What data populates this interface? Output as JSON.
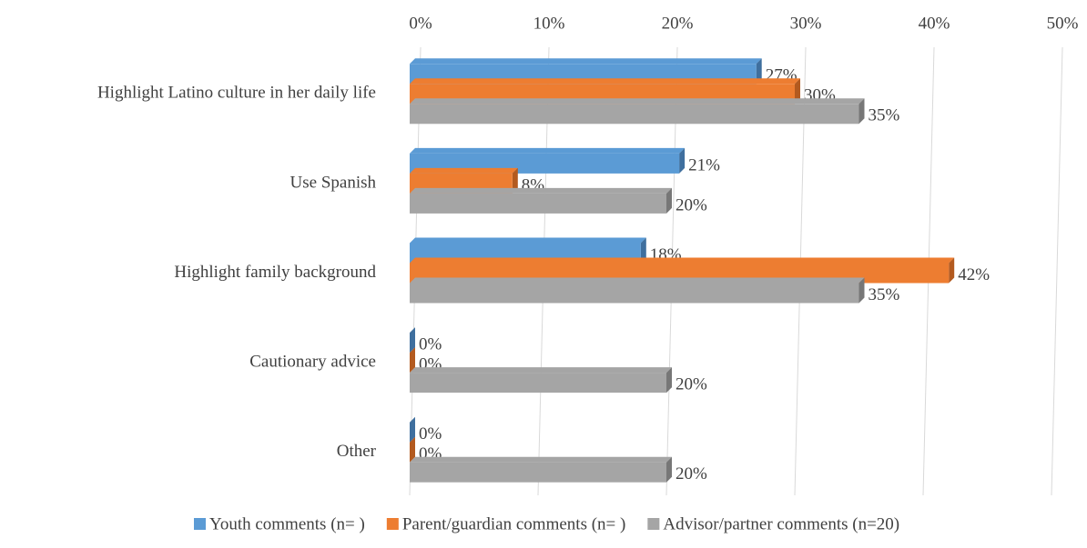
{
  "chart_data": {
    "type": "bar3d_horizontal",
    "categories": [
      "Highlight Latino culture in her daily life",
      "Use Spanish",
      "Highlight family  background",
      "Cautionary advice",
      "Other"
    ],
    "series": [
      {
        "name": "Youth comments (n= )",
        "color": "#5b9bd5",
        "side": "#3f6f9e",
        "values": [
          27,
          21,
          18,
          0,
          0
        ],
        "value_labels": [
          "27%",
          "21%",
          "18%",
          "0%",
          "0%"
        ]
      },
      {
        "name": "Parent/guardian comments (n= )",
        "color": "#ed7d31",
        "side": "#b35a1f",
        "values": [
          30,
          8,
          42,
          0,
          0
        ],
        "value_labels": [
          "30%",
          "8%",
          "42%",
          "0%",
          "0%"
        ]
      },
      {
        "name": "Advisor/partner comments (n=20)",
        "color": "#a5a5a5",
        "side": "#777777",
        "values": [
          35,
          20,
          35,
          20,
          20
        ],
        "value_labels": [
          "35%",
          "20%",
          "35%",
          "20%",
          "20%"
        ]
      }
    ],
    "xlim": [
      0,
      50
    ],
    "xticks": [
      {
        "value": 0,
        "label": "0%"
      },
      {
        "value": 10,
        "label": "10%"
      },
      {
        "value": 20,
        "label": "20%"
      },
      {
        "value": 30,
        "label": "30%"
      },
      {
        "value": 40,
        "label": "40%"
      },
      {
        "value": 50,
        "label": "50%"
      }
    ],
    "grid": true,
    "legend": "bottom"
  }
}
